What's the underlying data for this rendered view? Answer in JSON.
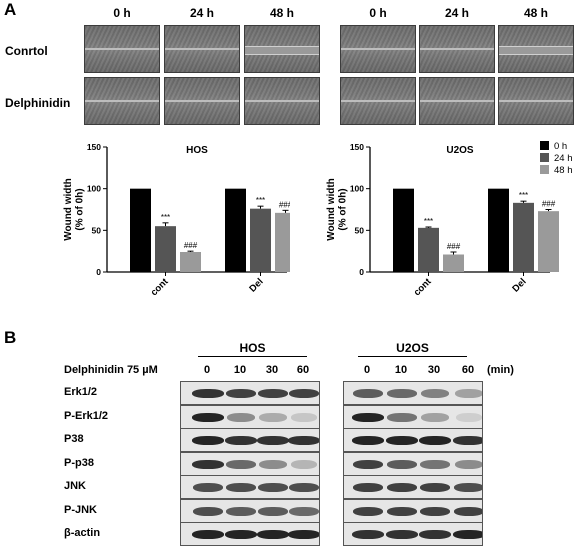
{
  "panel_a_label": "A",
  "panel_b_label": "B",
  "timepoints": [
    "0 h",
    "24 h",
    "48 h"
  ],
  "row_labels": [
    "Conrtol",
    "Delphinidin"
  ],
  "chart_data": [
    {
      "type": "bar",
      "title": "HOS",
      "ylabel": "Wound width\n(% of 0h)",
      "ylabel_lines": [
        "Wound width",
        "(% of 0h)"
      ],
      "ylim": [
        0,
        150
      ],
      "yticks": [
        0,
        50,
        100,
        150
      ],
      "categories": [
        "cont",
        "Del"
      ],
      "series": [
        {
          "name": "0 h",
          "color": "#000000",
          "values": [
            100,
            100
          ],
          "err": [
            0,
            0
          ]
        },
        {
          "name": "24 h",
          "color": "#555555",
          "values": [
            55,
            76
          ],
          "err": [
            4,
            3
          ]
        },
        {
          "name": "48 h",
          "color": "#9a9a9a",
          "values": [
            24,
            71
          ],
          "err": [
            1,
            3
          ]
        }
      ],
      "annotations": [
        {
          "category": 0,
          "series": 1,
          "text": "***"
        },
        {
          "category": 0,
          "series": 2,
          "text": "###"
        },
        {
          "category": 1,
          "series": 1,
          "text": "***"
        },
        {
          "category": 1,
          "series": 2,
          "text": "###"
        }
      ]
    },
    {
      "type": "bar",
      "title": "U2OS",
      "ylabel": "Wound width\n(% of 0h)",
      "ylabel_lines": [
        "Wound width",
        "(% of 0h)"
      ],
      "ylim": [
        0,
        150
      ],
      "yticks": [
        0,
        50,
        100,
        150
      ],
      "categories": [
        "cont",
        "Del"
      ],
      "legend_position": "top-right",
      "series": [
        {
          "name": "0 h",
          "color": "#000000",
          "values": [
            100,
            100
          ],
          "err": [
            0,
            0
          ]
        },
        {
          "name": "24 h",
          "color": "#555555",
          "values": [
            53,
            83
          ],
          "err": [
            1,
            2
          ]
        },
        {
          "name": "48 h",
          "color": "#9a9a9a",
          "values": [
            21,
            73
          ],
          "err": [
            3,
            2
          ]
        }
      ],
      "annotations": [
        {
          "category": 0,
          "series": 1,
          "text": "***"
        },
        {
          "category": 0,
          "series": 2,
          "text": "###"
        },
        {
          "category": 1,
          "series": 1,
          "text": "***"
        },
        {
          "category": 1,
          "series": 2,
          "text": "###"
        }
      ]
    }
  ],
  "blot": {
    "treatment_label": "Delphinidin 75 µM",
    "groups": [
      "HOS",
      "U2OS"
    ],
    "timepoints": [
      "0",
      "10",
      "30",
      "60"
    ],
    "unit": "(min)",
    "proteins": [
      "Erk1/2",
      "P-Erk1/2",
      "P38",
      "P-p38",
      "JNK",
      "P-JNK",
      "β-actin"
    ],
    "intensity": {
      "HOS": [
        [
          0.9,
          0.85,
          0.85,
          0.85
        ],
        [
          0.95,
          0.55,
          0.4,
          0.25
        ],
        [
          0.95,
          0.9,
          0.9,
          0.9
        ],
        [
          0.9,
          0.7,
          0.55,
          0.35
        ],
        [
          0.8,
          0.8,
          0.8,
          0.8
        ],
        [
          0.8,
          0.75,
          0.75,
          0.7
        ],
        [
          0.95,
          0.95,
          0.95,
          0.95
        ]
      ],
      "U2OS": [
        [
          0.75,
          0.7,
          0.6,
          0.45
        ],
        [
          0.95,
          0.65,
          0.45,
          0.2
        ],
        [
          0.95,
          0.95,
          0.95,
          0.9
        ],
        [
          0.85,
          0.75,
          0.65,
          0.55
        ],
        [
          0.85,
          0.85,
          0.85,
          0.8
        ],
        [
          0.85,
          0.85,
          0.85,
          0.85
        ],
        [
          0.9,
          0.9,
          0.9,
          0.95
        ]
      ]
    }
  }
}
